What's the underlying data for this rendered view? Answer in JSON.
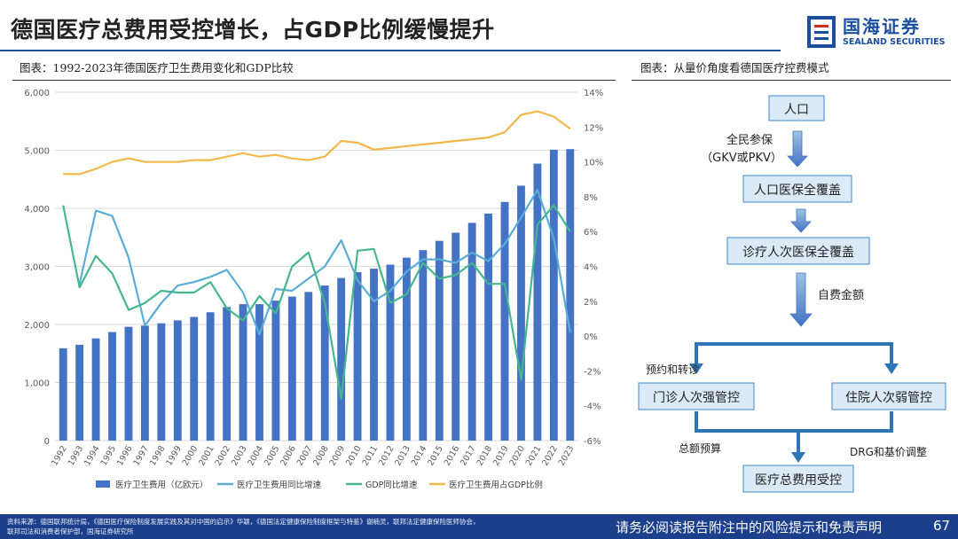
{
  "header": {
    "title": "德国医疗总费用受控增长，占GDP比例缓慢提升"
  },
  "logo": {
    "cn": "国海证券",
    "en": "SEALAND SECURITIES"
  },
  "left_caption": "图表：1992-2023年德国医疗卫生费用变化和GDP比较",
  "right_caption": "图表：从量价角度看德国医疗控费模式",
  "chart_data": {
    "type": "bar+line",
    "categories": [
      "1992",
      "1993",
      "1994",
      "1995",
      "1996",
      "1997",
      "1998",
      "1999",
      "2000",
      "2001",
      "2002",
      "2003",
      "2004",
      "2005",
      "2006",
      "2007",
      "2008",
      "2009",
      "2010",
      "2011",
      "2012",
      "2013",
      "2014",
      "2015",
      "2016",
      "2017",
      "2018",
      "2019",
      "2020",
      "2021",
      "2022",
      "2023"
    ],
    "left_axis": {
      "min": 0,
      "max": 6000,
      "step": 1000,
      "tick_labels": [
        "0",
        "1,000",
        "2,000",
        "3,000",
        "4,000",
        "5,000",
        "6,000"
      ]
    },
    "right_axis": {
      "min": -6,
      "max": 14,
      "step": 2,
      "tick_labels": [
        "-6%",
        "-4%",
        "-2%",
        "0%",
        "2%",
        "4%",
        "6%",
        "8%",
        "10%",
        "12%",
        "14%"
      ]
    },
    "series": [
      {
        "name": "医疗卫生费用（亿欧元）",
        "type": "bar",
        "axis": "left",
        "color": "#4472c4",
        "values": [
          1590,
          1650,
          1760,
          1870,
          1960,
          1980,
          2020,
          2070,
          2130,
          2210,
          2300,
          2350,
          2350,
          2410,
          2480,
          2560,
          2670,
          2800,
          2900,
          2960,
          3030,
          3150,
          3280,
          3440,
          3580,
          3750,
          3910,
          4110,
          4390,
          4770,
          5010,
          5020
        ]
      },
      {
        "name": "医疗卫生费用同比增速",
        "type": "line",
        "axis": "right",
        "color": "#5aaed6",
        "values": [
          null,
          3.0,
          7.2,
          6.9,
          4.5,
          0.6,
          1.9,
          2.9,
          3.1,
          3.4,
          3.8,
          2.5,
          0.1,
          2.7,
          2.6,
          3.3,
          4.0,
          5.5,
          3.2,
          2.0,
          2.6,
          3.7,
          4.4,
          4.4,
          4.2,
          4.8,
          4.3,
          5.3,
          6.8,
          8.4,
          5.6,
          0.2
        ]
      },
      {
        "name": "GDP同比增速",
        "type": "line",
        "axis": "right",
        "color": "#46b68e",
        "values": [
          7.5,
          2.8,
          4.6,
          3.6,
          1.5,
          1.9,
          2.6,
          2.5,
          2.5,
          3.1,
          1.6,
          0.9,
          2.3,
          1.3,
          4.0,
          4.8,
          1.9,
          -3.6,
          4.9,
          5.0,
          1.9,
          2.4,
          4.2,
          3.3,
          3.5,
          4.2,
          3.0,
          3.0,
          -2.5,
          6.4,
          7.5,
          6.0
        ]
      },
      {
        "name": "医疗卫生费用占GDP比例",
        "type": "line",
        "axis": "right",
        "color": "#f2b84b",
        "values": [
          9.3,
          9.3,
          9.6,
          10.0,
          10.2,
          10.0,
          10.0,
          10.0,
          10.1,
          10.1,
          10.3,
          10.5,
          10.3,
          10.4,
          10.2,
          10.1,
          10.3,
          11.2,
          11.1,
          10.7,
          10.8,
          10.9,
          11.0,
          11.1,
          11.2,
          11.3,
          11.4,
          11.7,
          12.7,
          12.9,
          12.6,
          11.9
        ]
      }
    ]
  },
  "flow": {
    "node_population": "人口",
    "label_insurance": "全民参保",
    "label_insurance_paren": "（GKV或PKV）",
    "node_full_coverage": "人口医保全覆盖",
    "node_visit_coverage": "诊疗人次医保全覆盖",
    "label_self_pay": "自费金额",
    "label_appointment": "预约和转诊",
    "node_outpatient": "门诊人次强管控",
    "node_inpatient": "住院人次弱管控",
    "label_budget": "总额预算",
    "label_drg": "DRG和基价调整",
    "node_total": "医疗总费用受控",
    "colors": {
      "box_fill": "#dce9f6",
      "box_stroke": "#5b9bd5",
      "arrow": "#4472c4",
      "line": "#2e75b6"
    }
  },
  "footer": {
    "source_line1": "资料来源：德国联邦统计局，《德国医疗保险制度发展实践及其对中国的启示》华颖，《德国法定健康保险制度框架与特鉴》谢楠灵，联邦法定健康保险医师协会，",
    "source_line2": "联邦司法和消费者保护部，国海证券研究所",
    "disclaimer": "请务必阅读报告附注中的风险提示和免责声明",
    "page": "67"
  }
}
